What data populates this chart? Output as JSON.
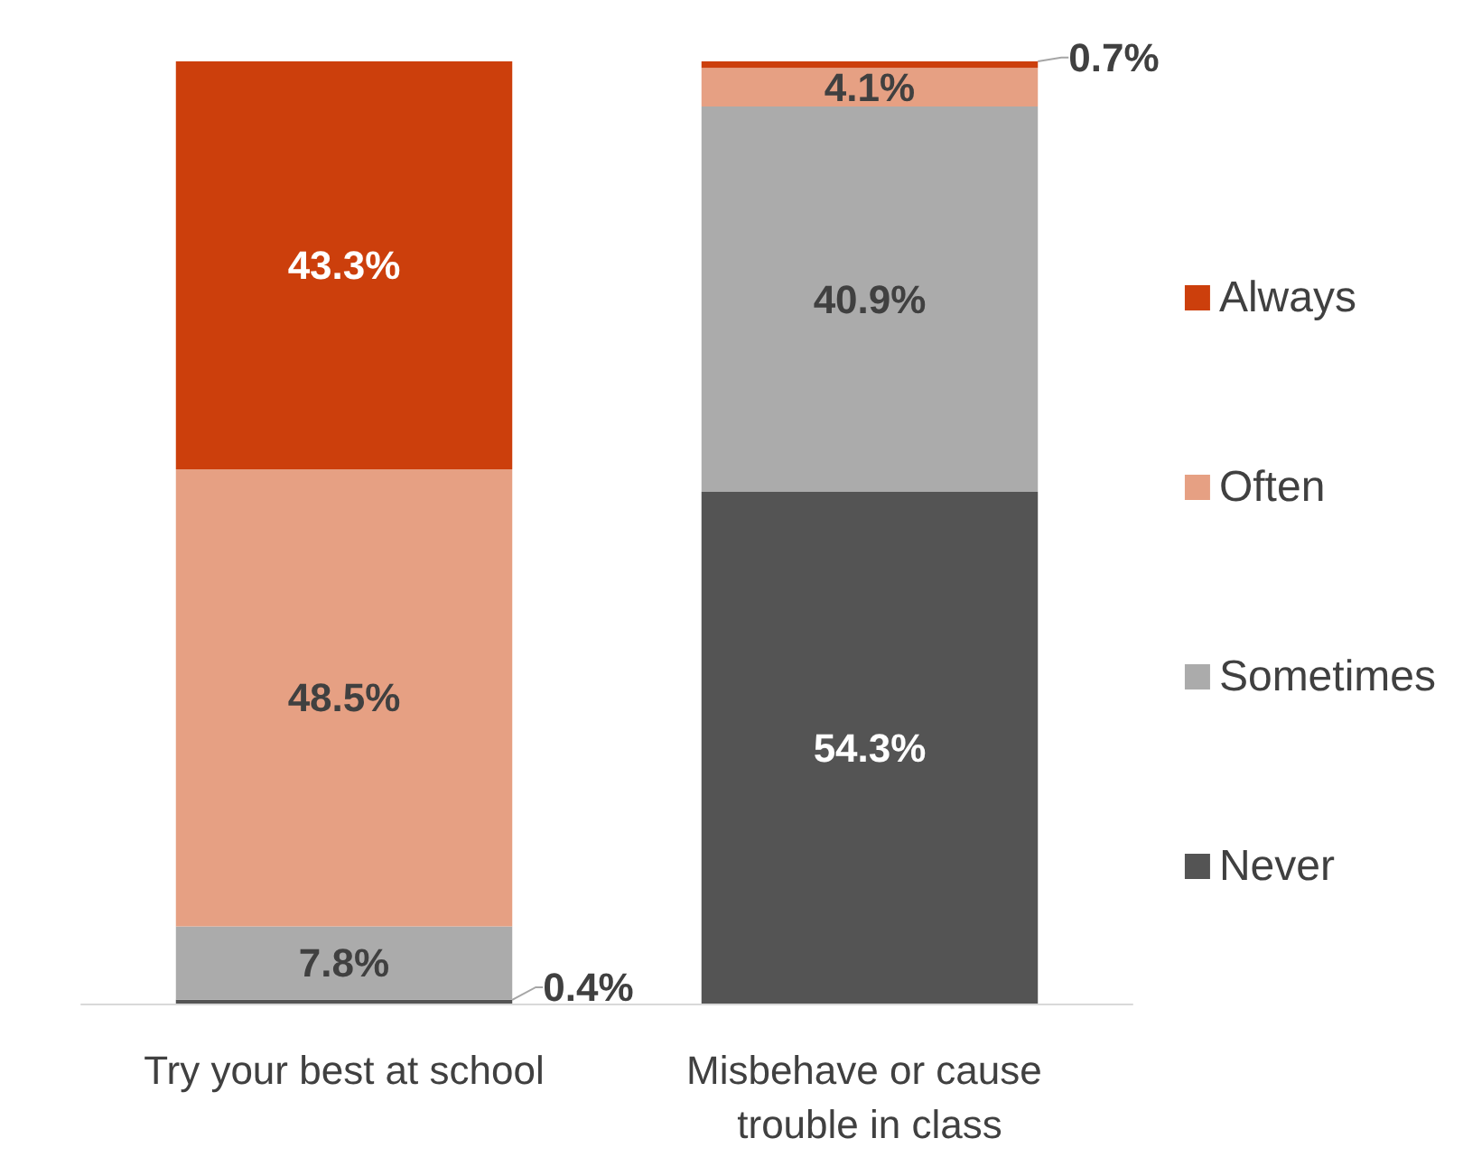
{
  "chart_data": {
    "type": "bar",
    "stacked": true,
    "categories": [
      "Try your best at school",
      "Misbehave or cause trouble in class"
    ],
    "series": [
      {
        "name": "Never",
        "color": "#545454",
        "values": [
          0.4,
          54.3
        ],
        "value_labels": [
          "0.4%",
          "54.3%"
        ]
      },
      {
        "name": "Sometimes",
        "color": "#ababab",
        "values": [
          7.8,
          40.9
        ],
        "value_labels": [
          "7.8%",
          "40.9%"
        ]
      },
      {
        "name": "Often",
        "color": "#e6a083",
        "values": [
          48.5,
          4.1
        ],
        "value_labels": [
          "48.5%",
          "4.1%"
        ]
      },
      {
        "name": "Always",
        "color": "#cc3f0c",
        "values": [
          43.3,
          0.7
        ],
        "value_labels": [
          "43.3%",
          "0.7%"
        ]
      }
    ],
    "legend": "right"
  }
}
